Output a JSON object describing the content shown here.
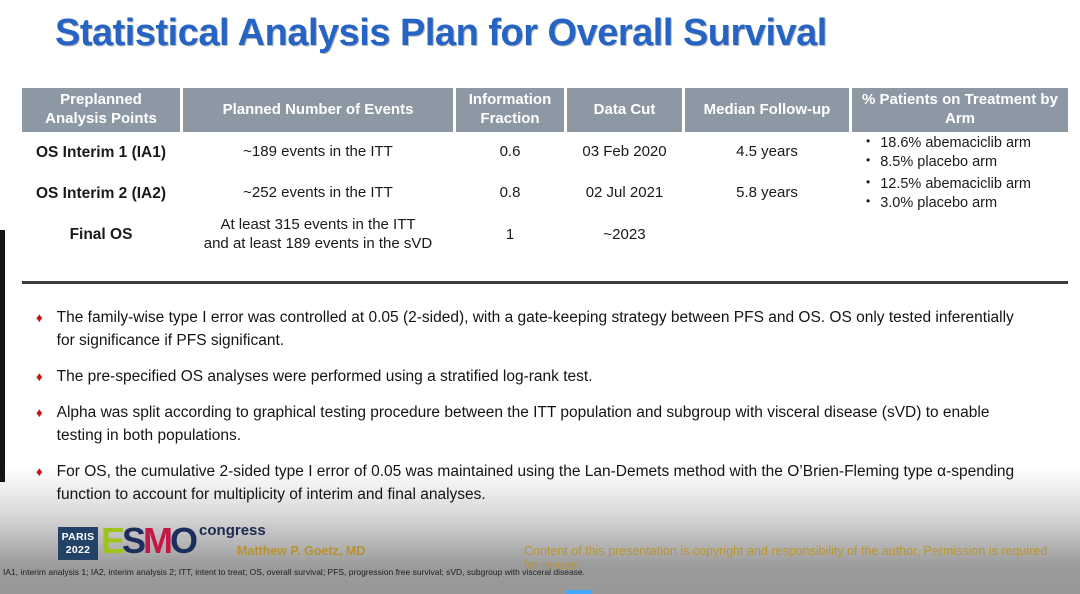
{
  "slide": {
    "title": "Statistical Analysis Plan for Overall Survival"
  },
  "icons": {
    "diamond": "♦",
    "bullet": "•"
  },
  "table": {
    "headers": [
      "Preplanned Analysis Points",
      "Planned Number of Events",
      "Information Fraction",
      "Data Cut",
      "Median Follow-up",
      "% Patients on Treatment by Arm"
    ],
    "rows": [
      {
        "analysis_point": "OS Interim 1 (IA1)",
        "events": [
          "~189 events in the ITT"
        ],
        "information_fraction": "0.6",
        "data_cut": "03 Feb 2020",
        "median_followup": "4.5 years",
        "treatment_by_arm": [
          "18.6% abemaciclib arm",
          "8.5% placebo arm"
        ]
      },
      {
        "analysis_point": "OS Interim 2 (IA2)",
        "events": [
          "~252 events in the ITT"
        ],
        "information_fraction": "0.8",
        "data_cut": "02 Jul 2021",
        "median_followup": "5.8 years",
        "treatment_by_arm": [
          "12.5% abemaciclib arm",
          "3.0% placebo arm"
        ]
      },
      {
        "analysis_point": "Final OS",
        "events": [
          "At least 315 events in the ITT",
          "and at least 189 events in the sVD"
        ],
        "information_fraction": "1",
        "data_cut": "~2023",
        "median_followup": "",
        "treatment_by_arm": []
      }
    ]
  },
  "bullets": [
    "The family-wise type I error was controlled at 0.05 (2-sided), with a gate-keeping strategy between PFS and OS. OS only tested inferentially for significance if PFS significant.",
    "The pre-specified OS analyses were performed using a stratified log-rank test.",
    "Alpha was split according to graphical testing procedure between the ITT population and subgroup with visceral disease (sVD) to enable testing in both populations.",
    "For OS, the cumulative 2-sided type I error of 0.05 was maintained using the Lan-Demets method with the O’Brien-Fleming type α-spending function to account for multiplicity of interim and final analyses."
  ],
  "footer": {
    "paris_line1": "PARIS",
    "paris_line2": "2022",
    "esmo_letters": {
      "e": "E",
      "s": "S",
      "m": "M",
      "o": "O"
    },
    "congress_label": "congress",
    "presenter": "Matthew P. Goetz, MD",
    "copyright": "Content of this presentation is copyright and responsibility of the author. Permission is required for re-use."
  },
  "abbreviations": "IA1, interim analysis 1; IA2, interim analysis 2; ITT, intent to treat; OS, overall survival; PFS, progression free survival; sVD, subgroup with visceral disease.",
  "colors": {
    "title_blue": "#2563c5",
    "table_header_bg": "#8c99a4",
    "diamond_red": "#cc1111",
    "footer_gold": "#b8922f",
    "esmo_green": "#9dc41a",
    "esmo_navy": "#1c2e5e",
    "esmo_red": "#c41946",
    "progress_blue": "#44a8ff"
  }
}
